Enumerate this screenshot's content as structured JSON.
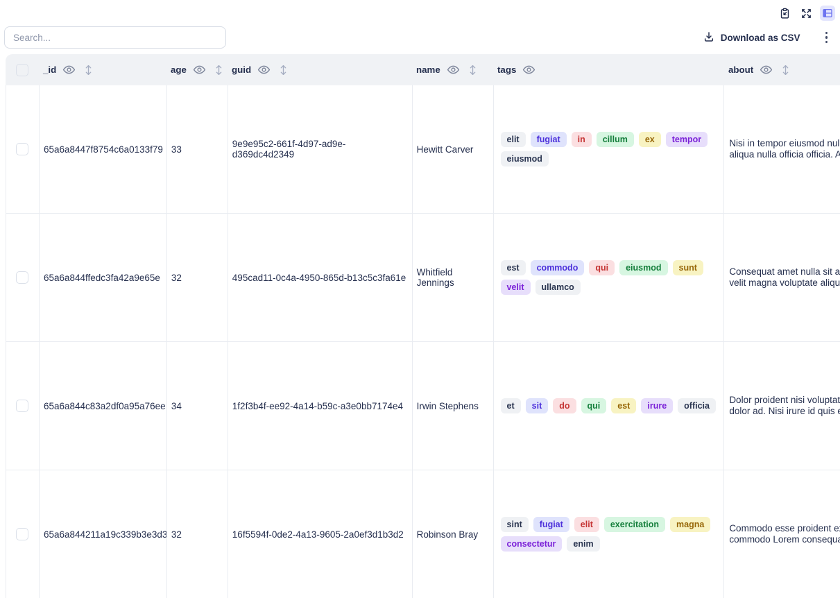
{
  "topbar": {
    "buttons": [
      {
        "name": "clipboard-button",
        "icon": "clipboard-import-icon",
        "active": false
      },
      {
        "name": "fullscreen-button",
        "icon": "fullscreen-expand-icon",
        "active": false
      },
      {
        "name": "table-view-button",
        "icon": "table-view-icon",
        "active": true
      }
    ]
  },
  "controls": {
    "search_placeholder": "Search...",
    "download_label": "Download as CSV",
    "download_icon": "download-icon",
    "menu_icon": "kebab-vertical-icon"
  },
  "table": {
    "columns": [
      {
        "key": "_id",
        "label": "_id",
        "eye": true,
        "sort": true
      },
      {
        "key": "age",
        "label": "age",
        "eye": true,
        "sort": true
      },
      {
        "key": "guid",
        "label": "guid",
        "eye": true,
        "sort": true
      },
      {
        "key": "name",
        "label": "name",
        "eye": true,
        "sort": true
      },
      {
        "key": "tags",
        "label": "tags",
        "eye": true,
        "sort": false
      },
      {
        "key": "about",
        "label": "about",
        "eye": true,
        "sort": true
      }
    ],
    "header_icons": [
      "eye-icon",
      "sort-icon"
    ],
    "rows": [
      {
        "_id": "65a6a8447f8754c6a0133f79",
        "age": "33",
        "guid": "9e9e95c2-661f-4d97-ad9e-d369dc4d2349",
        "name": "Hewitt Carver",
        "tags": [
          {
            "label": "elit",
            "color": "gray"
          },
          {
            "label": "fugiat",
            "color": "blue"
          },
          {
            "label": "in",
            "color": "red"
          },
          {
            "label": "cillum",
            "color": "green"
          },
          {
            "label": "ex",
            "color": "yellow"
          },
          {
            "label": "tempor",
            "color": "purple"
          },
          {
            "label": "eiusmod",
            "color": "gray"
          }
        ],
        "about_lines": [
          "Nisi in tempor eiusmod nulla",
          "aliqua nulla officia officia. Aliquip"
        ]
      },
      {
        "_id": "65a6a844ffedc3fa42a9e65e",
        "age": "32",
        "guid": "495cad11-0c4a-4950-865d-b13c5c3fa61e",
        "name": "Whitfield Jennings",
        "tags": [
          {
            "label": "est",
            "color": "gray"
          },
          {
            "label": "commodo",
            "color": "blue"
          },
          {
            "label": "qui",
            "color": "red"
          },
          {
            "label": "eiusmod",
            "color": "green"
          },
          {
            "label": "sunt",
            "color": "yellow"
          },
          {
            "label": "velit",
            "color": "purple"
          },
          {
            "label": "ullamco",
            "color": "gray"
          }
        ],
        "about_lines": [
          "Consequat amet nulla sit aute",
          "velit magna voluptate aliqua"
        ]
      },
      {
        "_id": "65a6a844c83a2df0a95a76ee",
        "age": "34",
        "guid": "1f2f3b4f-ee92-4a14-b59c-a3e0bb7174e4",
        "name": "Irwin Stephens",
        "tags": [
          {
            "label": "et",
            "color": "gray"
          },
          {
            "label": "sit",
            "color": "blue"
          },
          {
            "label": "do",
            "color": "red"
          },
          {
            "label": "qui",
            "color": "green"
          },
          {
            "label": "est",
            "color": "yellow"
          },
          {
            "label": "irure",
            "color": "purple"
          },
          {
            "label": "officia",
            "color": "gray"
          }
        ],
        "about_lines": [
          "Dolor proident nisi voluptate",
          "dolor ad. Nisi irure id quis ex"
        ]
      },
      {
        "_id": "65a6a844211a19c339b3e3d3",
        "age": "32",
        "guid": "16f5594f-0de2-4a13-9605-2a0ef3d1b3d2",
        "name": "Robinson Bray",
        "tags": [
          {
            "label": "sint",
            "color": "gray"
          },
          {
            "label": "fugiat",
            "color": "blue"
          },
          {
            "label": "elit",
            "color": "red"
          },
          {
            "label": "exercitation",
            "color": "green"
          },
          {
            "label": "magna",
            "color": "yellow"
          },
          {
            "label": "consectetur",
            "color": "purple"
          },
          {
            "label": "enim",
            "color": "gray"
          }
        ],
        "about_lines": [
          "Commodo esse proident ex",
          "commodo Lorem consequat"
        ]
      }
    ]
  },
  "colors": {
    "accent_purple": "#6e74f0",
    "accent_purple_bg": "#e3e5fd",
    "text": "#252f4e",
    "border": "#e9ecf1",
    "header_bg": "#f0f2f5",
    "tag_colors": {
      "gray": {
        "bg": "#eff1f4",
        "text": "#2a3550"
      },
      "blue": {
        "bg": "#dfe3fc",
        "text": "#4c30db"
      },
      "red": {
        "bg": "#fbdfe1",
        "text": "#c53434"
      },
      "green": {
        "bg": "#d7f6e1",
        "text": "#157f3c"
      },
      "yellow": {
        "bg": "#f8f3c2",
        "text": "#976708"
      },
      "purple": {
        "bg": "#e7defb",
        "text": "#7b21d8"
      }
    }
  }
}
